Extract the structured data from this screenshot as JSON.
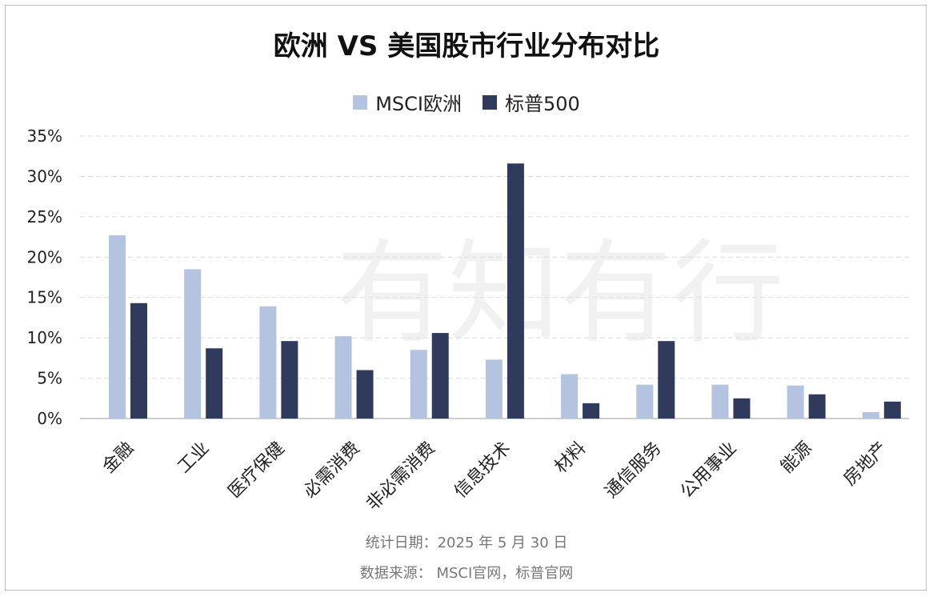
{
  "title": "欧洲 VS 美国股市行业分布对比",
  "watermark": "有知有行",
  "colors": {
    "europe": "#b4c3e0",
    "sp500": "#2f3a5c"
  },
  "legend": [
    {
      "label": "MSCI欧洲",
      "color": "#b4c3e0"
    },
    {
      "label": "标普500",
      "color": "#2f3a5c"
    }
  ],
  "footer": {
    "date_line": "统计日期：2025 年 5 月 30 日",
    "source_line": "数据来源： MSCI官网，标普官网"
  },
  "chart_data": {
    "type": "bar",
    "title": "欧洲 VS 美国股市行业分布对比",
    "categories": [
      "金融",
      "工业",
      "医疗保健",
      "必需消费",
      "非必需消费",
      "信息技术",
      "材料",
      "通信服务",
      "公用事业",
      "能源",
      "房地产"
    ],
    "series": [
      {
        "name": "MSCI欧洲",
        "values": [
          22.7,
          18.5,
          13.9,
          10.2,
          8.5,
          7.3,
          5.5,
          4.2,
          4.2,
          4.1,
          0.8
        ]
      },
      {
        "name": "标普500",
        "values": [
          14.3,
          8.7,
          9.6,
          6.0,
          10.6,
          31.6,
          1.9,
          9.6,
          2.5,
          3.0,
          2.1
        ]
      }
    ],
    "yticks": [
      "0%",
      "5%",
      "10%",
      "15%",
      "20%",
      "25%",
      "30%",
      "35%"
    ],
    "ylim": [
      0,
      35
    ],
    "grid": true,
    "legend_position": "top-center"
  }
}
